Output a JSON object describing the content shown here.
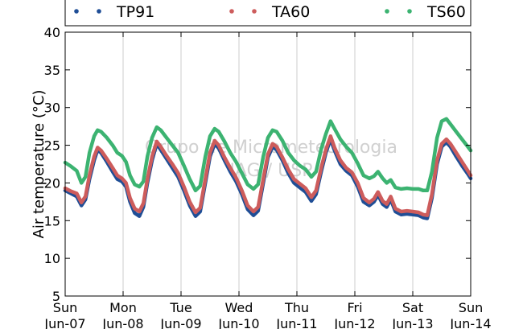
{
  "chart_data": {
    "type": "line",
    "ylabel": "Air temperature (°C)",
    "ylim": [
      5,
      40
    ],
    "y_ticks": [
      5,
      10,
      15,
      20,
      25,
      30,
      35,
      40
    ],
    "x_ticks": [
      {
        "day": "Sun",
        "date": "Jun-07"
      },
      {
        "day": "Mon",
        "date": "Jun-08"
      },
      {
        "day": "Tue",
        "date": "Jun-09"
      },
      {
        "day": "Wed",
        "date": "Jun-10"
      },
      {
        "day": "Thu",
        "date": "Jun-11"
      },
      {
        "day": "Fri",
        "date": "Jun-12"
      },
      {
        "day": "Sat",
        "date": "Jun-13"
      },
      {
        "day": "Sun",
        "date": "Jun-14"
      }
    ],
    "grid": "vertical",
    "legend_position": "top",
    "watermark": [
      "Grupo de Micrometeorologia",
      "IAG / USP"
    ],
    "series": [
      {
        "name": "TP91",
        "color": "#1f4e96",
        "points": [
          [
            0.0,
            19.0
          ],
          [
            0.1,
            18.6
          ],
          [
            0.2,
            18.2
          ],
          [
            0.28,
            17.0
          ],
          [
            0.35,
            17.8
          ],
          [
            0.42,
            20.5
          ],
          [
            0.5,
            23.0
          ],
          [
            0.56,
            24.4
          ],
          [
            0.62,
            24.0
          ],
          [
            0.72,
            22.8
          ],
          [
            0.82,
            21.5
          ],
          [
            0.9,
            20.5
          ],
          [
            0.98,
            20.2
          ],
          [
            1.05,
            19.5
          ],
          [
            1.12,
            17.5
          ],
          [
            1.2,
            16.0
          ],
          [
            1.28,
            15.6
          ],
          [
            1.35,
            16.8
          ],
          [
            1.42,
            20.0
          ],
          [
            1.5,
            23.0
          ],
          [
            1.58,
            25.2
          ],
          [
            1.65,
            24.4
          ],
          [
            1.75,
            23.2
          ],
          [
            1.85,
            22.0
          ],
          [
            1.95,
            20.8
          ],
          [
            2.05,
            19.0
          ],
          [
            2.15,
            17.0
          ],
          [
            2.25,
            15.6
          ],
          [
            2.33,
            16.2
          ],
          [
            2.42,
            20.0
          ],
          [
            2.5,
            23.5
          ],
          [
            2.58,
            25.2
          ],
          [
            2.65,
            24.6
          ],
          [
            2.75,
            23.0
          ],
          [
            2.85,
            21.5
          ],
          [
            2.95,
            20.2
          ],
          [
            3.05,
            18.5
          ],
          [
            3.15,
            16.5
          ],
          [
            3.25,
            15.7
          ],
          [
            3.33,
            16.3
          ],
          [
            3.42,
            20.0
          ],
          [
            3.5,
            23.4
          ],
          [
            3.58,
            24.8
          ],
          [
            3.65,
            24.4
          ],
          [
            3.75,
            23.0
          ],
          [
            3.85,
            21.3
          ],
          [
            3.95,
            20.0
          ],
          [
            4.05,
            19.4
          ],
          [
            4.15,
            18.8
          ],
          [
            4.25,
            17.6
          ],
          [
            4.33,
            18.5
          ],
          [
            4.42,
            21.5
          ],
          [
            4.5,
            24.0
          ],
          [
            4.58,
            25.8
          ],
          [
            4.65,
            24.3
          ],
          [
            4.75,
            22.5
          ],
          [
            4.85,
            21.6
          ],
          [
            4.95,
            21.0
          ],
          [
            5.05,
            19.5
          ],
          [
            5.15,
            17.5
          ],
          [
            5.25,
            17.0
          ],
          [
            5.33,
            17.5
          ],
          [
            5.4,
            18.4
          ],
          [
            5.48,
            17.2
          ],
          [
            5.55,
            16.8
          ],
          [
            5.62,
            17.8
          ],
          [
            5.7,
            16.2
          ],
          [
            5.8,
            15.8
          ],
          [
            5.9,
            15.9
          ],
          [
            6.0,
            15.8
          ],
          [
            6.1,
            15.7
          ],
          [
            6.18,
            15.4
          ],
          [
            6.25,
            15.3
          ],
          [
            6.33,
            18.0
          ],
          [
            6.42,
            22.5
          ],
          [
            6.5,
            24.8
          ],
          [
            6.58,
            25.4
          ],
          [
            6.65,
            24.8
          ],
          [
            6.75,
            23.5
          ],
          [
            6.85,
            22.3
          ],
          [
            6.95,
            21.2
          ],
          [
            7.0,
            20.6
          ]
        ]
      },
      {
        "name": "TA60",
        "color": "#cd5c5c",
        "points": [
          [
            0.0,
            19.3
          ],
          [
            0.1,
            18.9
          ],
          [
            0.2,
            18.6
          ],
          [
            0.28,
            17.4
          ],
          [
            0.35,
            18.2
          ],
          [
            0.42,
            21.0
          ],
          [
            0.5,
            23.5
          ],
          [
            0.56,
            24.7
          ],
          [
            0.62,
            24.3
          ],
          [
            0.72,
            23.2
          ],
          [
            0.82,
            22.0
          ],
          [
            0.9,
            21.0
          ],
          [
            0.98,
            20.6
          ],
          [
            1.05,
            20.0
          ],
          [
            1.12,
            18.0
          ],
          [
            1.2,
            16.6
          ],
          [
            1.28,
            16.2
          ],
          [
            1.35,
            17.3
          ],
          [
            1.42,
            20.5
          ],
          [
            1.5,
            23.5
          ],
          [
            1.58,
            25.5
          ],
          [
            1.65,
            24.8
          ],
          [
            1.75,
            23.6
          ],
          [
            1.85,
            22.5
          ],
          [
            1.95,
            21.3
          ],
          [
            2.05,
            19.5
          ],
          [
            2.15,
            17.5
          ],
          [
            2.25,
            16.1
          ],
          [
            2.33,
            16.7
          ],
          [
            2.42,
            20.5
          ],
          [
            2.5,
            24.0
          ],
          [
            2.58,
            25.6
          ],
          [
            2.65,
            25.0
          ],
          [
            2.75,
            23.4
          ],
          [
            2.85,
            22.0
          ],
          [
            2.95,
            20.7
          ],
          [
            3.05,
            19.0
          ],
          [
            3.15,
            17.0
          ],
          [
            3.25,
            16.2
          ],
          [
            3.33,
            16.8
          ],
          [
            3.42,
            20.5
          ],
          [
            3.5,
            23.8
          ],
          [
            3.58,
            25.2
          ],
          [
            3.65,
            24.8
          ],
          [
            3.75,
            23.4
          ],
          [
            3.85,
            21.8
          ],
          [
            3.95,
            20.5
          ],
          [
            4.05,
            19.9
          ],
          [
            4.15,
            19.3
          ],
          [
            4.25,
            18.1
          ],
          [
            4.33,
            19.0
          ],
          [
            4.42,
            22.0
          ],
          [
            4.5,
            24.4
          ],
          [
            4.58,
            26.2
          ],
          [
            4.65,
            24.7
          ],
          [
            4.75,
            23.0
          ],
          [
            4.85,
            22.0
          ],
          [
            4.95,
            21.4
          ],
          [
            5.05,
            20.0
          ],
          [
            5.15,
            18.0
          ],
          [
            5.25,
            17.4
          ],
          [
            5.33,
            17.9
          ],
          [
            5.4,
            18.8
          ],
          [
            5.48,
            17.6
          ],
          [
            5.55,
            17.2
          ],
          [
            5.62,
            18.2
          ],
          [
            5.7,
            16.6
          ],
          [
            5.8,
            16.2
          ],
          [
            5.9,
            16.3
          ],
          [
            6.0,
            16.2
          ],
          [
            6.1,
            16.1
          ],
          [
            6.18,
            15.8
          ],
          [
            6.25,
            15.7
          ],
          [
            6.33,
            18.5
          ],
          [
            6.42,
            23.0
          ],
          [
            6.5,
            25.2
          ],
          [
            6.58,
            25.8
          ],
          [
            6.65,
            25.2
          ],
          [
            6.75,
            24.0
          ],
          [
            6.85,
            22.8
          ],
          [
            6.95,
            21.6
          ],
          [
            7.0,
            21.0
          ]
        ]
      },
      {
        "name": "TS60",
        "color": "#3cb371",
        "points": [
          [
            0.0,
            22.7
          ],
          [
            0.1,
            22.2
          ],
          [
            0.2,
            21.6
          ],
          [
            0.28,
            20.0
          ],
          [
            0.35,
            20.8
          ],
          [
            0.42,
            24.0
          ],
          [
            0.5,
            26.2
          ],
          [
            0.56,
            27.0
          ],
          [
            0.62,
            26.8
          ],
          [
            0.72,
            26.0
          ],
          [
            0.82,
            25.0
          ],
          [
            0.9,
            24.0
          ],
          [
            0.98,
            23.6
          ],
          [
            1.05,
            22.8
          ],
          [
            1.12,
            21.0
          ],
          [
            1.2,
            19.8
          ],
          [
            1.28,
            19.5
          ],
          [
            1.35,
            20.2
          ],
          [
            1.42,
            23.5
          ],
          [
            1.5,
            26.0
          ],
          [
            1.58,
            27.4
          ],
          [
            1.65,
            27.0
          ],
          [
            1.75,
            26.0
          ],
          [
            1.85,
            25.0
          ],
          [
            1.95,
            24.0
          ],
          [
            2.05,
            22.3
          ],
          [
            2.15,
            20.5
          ],
          [
            2.25,
            19.0
          ],
          [
            2.33,
            19.6
          ],
          [
            2.42,
            23.5
          ],
          [
            2.5,
            26.2
          ],
          [
            2.58,
            27.2
          ],
          [
            2.65,
            26.8
          ],
          [
            2.75,
            25.5
          ],
          [
            2.85,
            24.0
          ],
          [
            2.95,
            22.8
          ],
          [
            3.05,
            21.3
          ],
          [
            3.15,
            19.8
          ],
          [
            3.25,
            19.2
          ],
          [
            3.33,
            19.8
          ],
          [
            3.42,
            23.5
          ],
          [
            3.5,
            26.0
          ],
          [
            3.58,
            27.0
          ],
          [
            3.65,
            26.8
          ],
          [
            3.75,
            25.6
          ],
          [
            3.85,
            24.0
          ],
          [
            3.95,
            23.0
          ],
          [
            4.05,
            22.3
          ],
          [
            4.15,
            21.8
          ],
          [
            4.25,
            20.8
          ],
          [
            4.33,
            21.5
          ],
          [
            4.42,
            24.5
          ],
          [
            4.5,
            26.5
          ],
          [
            4.58,
            28.2
          ],
          [
            4.65,
            27.2
          ],
          [
            4.75,
            25.8
          ],
          [
            4.85,
            24.8
          ],
          [
            4.95,
            24.0
          ],
          [
            5.05,
            22.6
          ],
          [
            5.15,
            21.0
          ],
          [
            5.25,
            20.6
          ],
          [
            5.33,
            20.9
          ],
          [
            5.4,
            21.5
          ],
          [
            5.48,
            20.6
          ],
          [
            5.55,
            20.0
          ],
          [
            5.62,
            20.4
          ],
          [
            5.7,
            19.4
          ],
          [
            5.8,
            19.2
          ],
          [
            5.9,
            19.3
          ],
          [
            6.0,
            19.2
          ],
          [
            6.1,
            19.2
          ],
          [
            6.18,
            19.0
          ],
          [
            6.25,
            19.0
          ],
          [
            6.33,
            21.5
          ],
          [
            6.42,
            26.0
          ],
          [
            6.5,
            28.2
          ],
          [
            6.58,
            28.5
          ],
          [
            6.65,
            27.8
          ],
          [
            6.75,
            26.8
          ],
          [
            6.85,
            25.8
          ],
          [
            6.95,
            24.8
          ],
          [
            7.0,
            24.3
          ]
        ]
      }
    ]
  }
}
